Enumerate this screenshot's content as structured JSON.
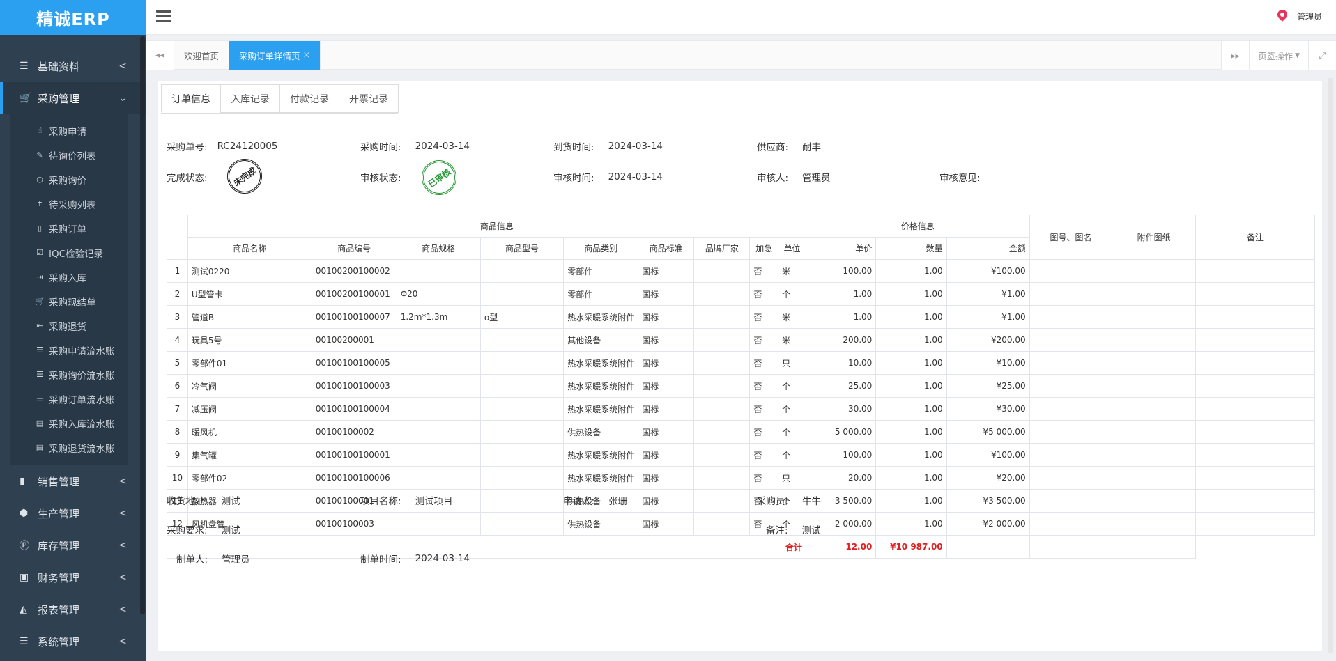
{
  "app": {
    "logo": "精诚ERP"
  },
  "header": {
    "user": "管理员",
    "icons": [
      "menu-icon",
      "location-pin-icon"
    ]
  },
  "sidebar": {
    "items": [
      {
        "label": "基础资料",
        "icon": "list-icon",
        "arrow": "<",
        "glyph": "☰"
      },
      {
        "label": "采购管理",
        "icon": "cart-icon",
        "arrow": "⌄",
        "glyph": "🛒",
        "active": true
      },
      {
        "label": "销售管理",
        "icon": "building-icon",
        "arrow": "<",
        "glyph": "▮"
      },
      {
        "label": "生产管理",
        "icon": "cubes-icon",
        "arrow": "<",
        "glyph": "⬢"
      },
      {
        "label": "库存管理",
        "icon": "product-hunt-icon",
        "arrow": "<",
        "glyph": "Ⓟ"
      },
      {
        "label": "财务管理",
        "icon": "money-icon",
        "arrow": "<",
        "glyph": "▣"
      },
      {
        "label": "报表管理",
        "icon": "area-chart-icon",
        "arrow": "<",
        "glyph": "◭"
      },
      {
        "label": "系统管理",
        "icon": "gear-icon",
        "arrow": "<",
        "glyph": "☰"
      }
    ],
    "sub_items": [
      {
        "label": "采购申请",
        "glyph": "☝"
      },
      {
        "label": "待询价列表",
        "glyph": "✎"
      },
      {
        "label": "采购询价",
        "glyph": "○"
      },
      {
        "label": "待采购列表",
        "glyph": "✝"
      },
      {
        "label": "采购订单",
        "glyph": "▯"
      },
      {
        "label": "IQC检验记录",
        "glyph": "☑"
      },
      {
        "label": "采购入库",
        "glyph": "⇥"
      },
      {
        "label": "采购现结单",
        "glyph": "🛒"
      },
      {
        "label": "采购退货",
        "glyph": "⇤"
      },
      {
        "label": "采购申请流水账",
        "glyph": "☰"
      },
      {
        "label": "采购询价流水账",
        "glyph": "☰"
      },
      {
        "label": "采购订单流水账",
        "glyph": "☰"
      },
      {
        "label": "采购入库流水账",
        "glyph": "▤"
      },
      {
        "label": "采购退货流水账",
        "glyph": "▤"
      }
    ]
  },
  "page_tabs": {
    "tabs": [
      {
        "label": "欢迎首页"
      },
      {
        "label": "采购订单详情页",
        "close": "×",
        "active": true
      }
    ],
    "tab_ops": "页签操作",
    "icons": [
      "backward-icon",
      "forward-icon",
      "fullscreen-icon"
    ]
  },
  "detail_tabs": [
    "订单信息",
    "入库记录",
    "付款记录",
    "开票记录"
  ],
  "order": {
    "no_label": "采购单号:",
    "no": "RC24120005",
    "time_label": "采购时间:",
    "time": "2024-03-14",
    "arrive_label": "到货时间:",
    "arrive": "2024-03-14",
    "supplier_label": "供应商:",
    "supplier": "耐丰",
    "finish_label": "完成状态:",
    "finish_stamp": "未完成",
    "audit_label": "审核状态:",
    "audit_stamp": "已审核",
    "audit_time_label": "审核时间:",
    "audit_time": "2024-03-14",
    "auditor_label": "审核人:",
    "auditor": "管理员",
    "opinion_label": "审核意见:"
  },
  "table": {
    "group_goods": "商品信息",
    "group_price": "价格信息",
    "col_drawing": "图号、图名",
    "col_attach": "附件图纸",
    "col_remark": "备注",
    "cols": [
      "商品名称",
      "商品编号",
      "商品规格",
      "商品型号",
      "商品类别",
      "商品标准",
      "品牌厂家",
      "加急",
      "单位",
      "单价",
      "数量",
      "金额"
    ],
    "rows": [
      [
        "1",
        "测试0220",
        "00100200100002",
        "",
        "",
        "零部件",
        "国标",
        "",
        "否",
        "米",
        "100.00",
        "1.00",
        "¥100.00"
      ],
      [
        "2",
        "U型管卡",
        "00100200100001",
        "Φ20",
        "",
        "零部件",
        "国标",
        "",
        "否",
        "个",
        "1.00",
        "1.00",
        "¥1.00"
      ],
      [
        "3",
        "管道B",
        "00100100100007",
        "1.2m*1.3m",
        "o型",
        "热水采暖系统附件",
        "国标",
        "",
        "否",
        "米",
        "1.00",
        "1.00",
        "¥1.00"
      ],
      [
        "4",
        "玩具5号",
        "00100200001",
        "",
        "",
        "其他设备",
        "国标",
        "",
        "否",
        "米",
        "200.00",
        "1.00",
        "¥200.00"
      ],
      [
        "5",
        "零部件01",
        "00100100100005",
        "",
        "",
        "热水采暖系统附件",
        "国标",
        "",
        "否",
        "只",
        "10.00",
        "1.00",
        "¥10.00"
      ],
      [
        "6",
        "冷气阀",
        "00100100100003",
        "",
        "",
        "热水采暖系统附件",
        "国标",
        "",
        "否",
        "个",
        "25.00",
        "1.00",
        "¥25.00"
      ],
      [
        "7",
        "减压阀",
        "00100100100004",
        "",
        "",
        "热水采暖系统附件",
        "国标",
        "",
        "否",
        "个",
        "30.00",
        "1.00",
        "¥30.00"
      ],
      [
        "8",
        "暖风机",
        "00100100002",
        "",
        "",
        "供热设备",
        "国标",
        "",
        "否",
        "个",
        "5 000.00",
        "1.00",
        "¥5 000.00"
      ],
      [
        "9",
        "集气罐",
        "00100100100001",
        "",
        "",
        "热水采暖系统附件",
        "国标",
        "",
        "否",
        "个",
        "100.00",
        "1.00",
        "¥100.00"
      ],
      [
        "10",
        "零部件02",
        "00100100100006",
        "",
        "",
        "热水采暖系统附件",
        "国标",
        "",
        "否",
        "只",
        "20.00",
        "1.00",
        "¥20.00"
      ],
      [
        "11",
        "散热器",
        "00100100001",
        "",
        "",
        "供热设备",
        "国标",
        "",
        "否",
        "个",
        "3 500.00",
        "1.00",
        "¥3 500.00"
      ],
      [
        "12",
        "风机盘管",
        "00100100003",
        "",
        "",
        "供热设备",
        "国标",
        "",
        "否",
        "个",
        "2 000.00",
        "1.00",
        "¥2 000.00"
      ]
    ],
    "total_label": "合计",
    "total_qty": "12.00",
    "total_amount": "¥10 987.00"
  },
  "footer": {
    "address_label": "收货地址:",
    "address": "测试",
    "project_label": "项目名称:",
    "project": "测试项目",
    "applicant_label": "申请人:",
    "applicant": "张珊",
    "buyer_label": "采购员:",
    "buyer": "牛牛",
    "req_label": "采购要求:",
    "req": "测试",
    "remark_label": "备注:",
    "remark": "测试",
    "maker_label": "制单人:",
    "maker": "管理员",
    "make_time_label": "制单时间:",
    "make_time": "2024-03-14"
  }
}
